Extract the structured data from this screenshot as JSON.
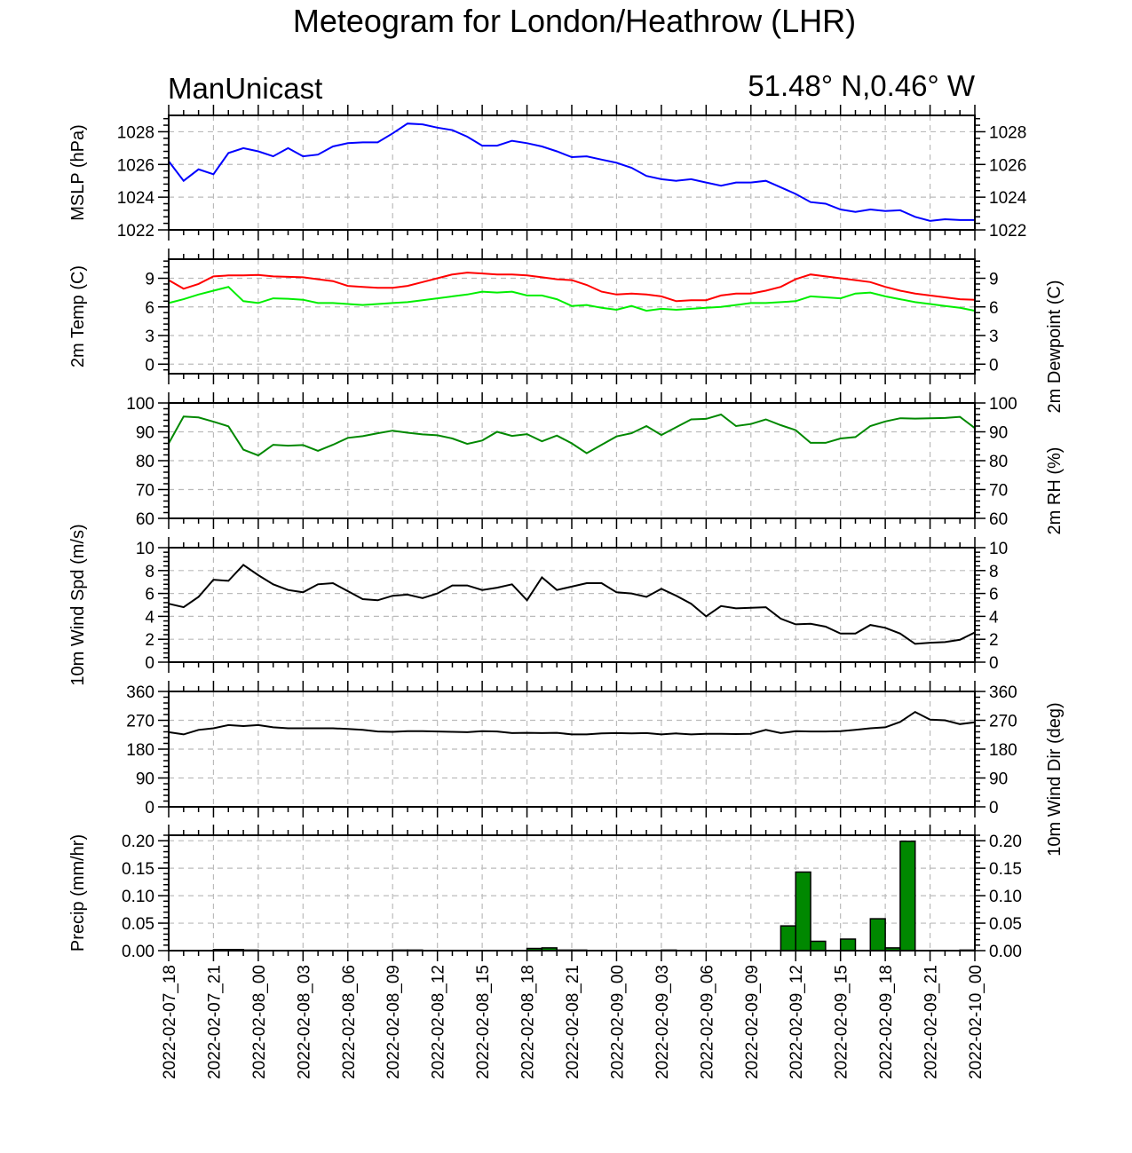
{
  "page": {
    "title": "Meteogram for London/Heathrow (LHR)",
    "model": "ManUnicast",
    "location": "51.48° N,0.46° W"
  },
  "chart_data": {
    "type": "line",
    "x_tick_labels": [
      "2022-02-07_18",
      "2022-02-07_21",
      "2022-02-08_00",
      "2022-02-08_03",
      "2022-02-08_06",
      "2022-02-08_09",
      "2022-02-08_12",
      "2022-02-08_15",
      "2022-02-08_18",
      "2022-02-08_21",
      "2022-02-09_00",
      "2022-02-09_03",
      "2022-02-09_06",
      "2022-02-09_09",
      "2022-02-09_12",
      "2022-02-09_15",
      "2022-02-09_18",
      "2022-02-09_21",
      "2022-02-10_00"
    ],
    "x_range_hours": [
      0,
      54
    ],
    "panels": [
      {
        "ylabel": "MSLP (hPa)",
        "ylabel_right": "",
        "ylim": [
          1022,
          1029
        ],
        "ticks": [
          1022,
          1024,
          1026,
          1028
        ],
        "tick_labels_right": true,
        "series": [
          {
            "color": "#0000ff",
            "x": [
              0,
              1,
              2,
              3,
              4,
              5,
              6,
              7,
              8,
              9,
              10,
              11,
              12,
              13,
              14,
              15,
              16,
              17,
              18,
              19,
              20,
              21,
              22,
              23,
              24,
              25,
              26,
              27,
              28,
              29,
              30,
              31,
              32,
              33,
              34,
              35,
              36,
              37,
              38,
              39,
              40,
              41,
              42,
              43,
              44,
              45,
              46,
              47,
              48,
              49,
              50,
              51,
              52,
              53,
              54
            ],
            "values": [
              1026.2,
              1025.0,
              1025.7,
              1025.4,
              1026.7,
              1027.0,
              1026.8,
              1026.5,
              1027.0,
              1026.5,
              1026.6,
              1027.1,
              1027.3,
              1027.35,
              1027.35,
              1027.9,
              1028.5,
              1028.45,
              1028.25,
              1028.1,
              1027.7,
              1027.15,
              1027.15,
              1027.45,
              1027.3,
              1027.1,
              1026.8,
              1026.45,
              1026.5,
              1026.3,
              1026.1,
              1025.8,
              1025.3,
              1025.1,
              1025.0,
              1025.1,
              1024.9,
              1024.7,
              1024.9,
              1024.9,
              1025.0,
              1024.6,
              1024.2,
              1023.7,
              1023.6,
              1023.25,
              1023.1,
              1023.25,
              1023.15,
              1023.2,
              1022.8,
              1022.55,
              1022.65,
              1022.6,
              1022.6
            ]
          }
        ]
      },
      {
        "ylabel": "2m Temp (C)",
        "ylabel_right": "2m Dewpoint (C)",
        "ylim": [
          -1,
          11
        ],
        "ticks": [
          0,
          3,
          6,
          9
        ],
        "tick_labels_right": true,
        "series": [
          {
            "color": "#ff0000",
            "x": [
              0,
              1,
              2,
              3,
              4,
              5,
              6,
              7,
              8,
              9,
              10,
              11,
              12,
              13,
              14,
              15,
              16,
              17,
              18,
              19,
              20,
              21,
              22,
              23,
              24,
              25,
              26,
              27,
              28,
              29,
              30,
              31,
              32,
              33,
              34,
              35,
              36,
              37,
              38,
              39,
              40,
              41,
              42,
              43,
              44,
              45,
              46,
              47,
              48,
              49,
              50,
              51,
              52,
              53,
              54
            ],
            "values": [
              8.8,
              7.9,
              8.4,
              9.2,
              9.3,
              9.3,
              9.35,
              9.2,
              9.15,
              9.1,
              8.9,
              8.7,
              8.2,
              8.1,
              8.0,
              8.0,
              8.2,
              8.6,
              9.0,
              9.4,
              9.6,
              9.5,
              9.4,
              9.4,
              9.3,
              9.1,
              8.9,
              8.8,
              8.3,
              7.6,
              7.3,
              7.4,
              7.3,
              7.1,
              6.6,
              6.7,
              6.7,
              7.2,
              7.4,
              7.4,
              7.7,
              8.1,
              8.9,
              9.4,
              9.2,
              9.0,
              8.8,
              8.6,
              8.1,
              7.7,
              7.4,
              7.2,
              7.0,
              6.8,
              6.75
            ]
          },
          {
            "color": "#00ee00",
            "x": [
              0,
              1,
              2,
              3,
              4,
              5,
              6,
              7,
              8,
              9,
              10,
              11,
              12,
              13,
              14,
              15,
              16,
              17,
              18,
              19,
              20,
              21,
              22,
              23,
              24,
              25,
              26,
              27,
              28,
              29,
              30,
              31,
              32,
              33,
              34,
              35,
              36,
              37,
              38,
              39,
              40,
              41,
              42,
              43,
              44,
              45,
              46,
              47,
              48,
              49,
              50,
              51,
              52,
              53,
              54
            ],
            "values": [
              6.4,
              6.8,
              7.3,
              7.7,
              8.1,
              6.6,
              6.4,
              6.9,
              6.85,
              6.75,
              6.4,
              6.4,
              6.3,
              6.2,
              6.3,
              6.4,
              6.5,
              6.7,
              6.9,
              7.1,
              7.3,
              7.6,
              7.5,
              7.6,
              7.2,
              7.2,
              6.8,
              6.1,
              6.2,
              5.9,
              5.7,
              6.1,
              5.6,
              5.8,
              5.7,
              5.8,
              5.9,
              6.0,
              6.2,
              6.4,
              6.4,
              6.5,
              6.6,
              7.1,
              7.0,
              6.9,
              7.4,
              7.5,
              7.1,
              6.8,
              6.5,
              6.3,
              6.1,
              5.9,
              5.6
            ]
          }
        ]
      },
      {
        "ylabel": "",
        "ylabel_right": "2m RH (%)",
        "ylim": [
          60,
          100
        ],
        "ticks": [
          60,
          70,
          80,
          90,
          100
        ],
        "tick_labels_right": true,
        "series": [
          {
            "color": "#008800",
            "x": [
              0,
              1,
              2,
              3,
              4,
              5,
              6,
              7,
              8,
              9,
              10,
              11,
              12,
              13,
              14,
              15,
              16,
              17,
              18,
              19,
              20,
              21,
              22,
              23,
              24,
              25,
              26,
              27,
              28,
              29,
              30,
              31,
              32,
              33,
              34,
              35,
              36,
              37,
              38,
              39,
              40,
              41,
              42,
              43,
              44,
              45,
              46,
              47,
              48,
              49,
              50,
              51,
              52,
              53,
              54
            ],
            "values": [
              86,
              95.3,
              95,
              93.5,
              91.9,
              83.8,
              81.8,
              85.5,
              85.2,
              85.4,
              83.4,
              85.5,
              87.9,
              88.5,
              89.5,
              90.4,
              89.7,
              89.1,
              88.8,
              87.7,
              85.8,
              87.0,
              90.0,
              88.6,
              89.2,
              86.7,
              88.7,
              86.0,
              82.6,
              85.5,
              88.4,
              89.5,
              92.0,
              88.9,
              91.6,
              94.3,
              94.5,
              96.0,
              92.0,
              92.7,
              94.3,
              92.3,
              90.6,
              86.2,
              86.2,
              87.7,
              88.2,
              92.0,
              93.6,
              94.7,
              94.6,
              94.7,
              94.8,
              95.2,
              91.3
            ]
          }
        ]
      },
      {
        "ylabel": "10m Wind Spd (m/s)",
        "ylabel_right": "",
        "ylim": [
          0,
          10
        ],
        "ticks": [
          0,
          2,
          4,
          6,
          8,
          10
        ],
        "tick_labels_right": true,
        "series": [
          {
            "color": "#000000",
            "x": [
              0,
              1,
              2,
              3,
              4,
              5,
              6,
              7,
              8,
              9,
              10,
              11,
              12,
              13,
              14,
              15,
              16,
              17,
              18,
              19,
              20,
              21,
              22,
              23,
              24,
              25,
              26,
              27,
              28,
              29,
              30,
              31,
              32,
              33,
              34,
              35,
              36,
              37,
              38,
              39,
              40,
              41,
              42,
              43,
              44,
              45,
              46,
              47,
              48,
              49,
              50,
              51,
              52,
              53,
              54
            ],
            "values": [
              5.1,
              4.8,
              5.7,
              7.2,
              7.1,
              8.5,
              7.6,
              6.8,
              6.3,
              6.1,
              6.8,
              6.9,
              6.2,
              5.5,
              5.4,
              5.8,
              5.9,
              5.6,
              6.0,
              6.7,
              6.7,
              6.3,
              6.5,
              6.8,
              5.4,
              7.4,
              6.3,
              6.6,
              6.9,
              6.9,
              6.1,
              6.0,
              5.7,
              6.4,
              5.8,
              5.1,
              4.0,
              4.9,
              4.7,
              4.75,
              4.8,
              3.8,
              3.3,
              3.35,
              3.1,
              2.5,
              2.5,
              3.25,
              3.0,
              2.5,
              1.6,
              1.7,
              1.75,
              1.95,
              2.6
            ]
          }
        ]
      },
      {
        "ylabel": "",
        "ylabel_right": "10m Wind Dir (deg)",
        "ylim": [
          0,
          360
        ],
        "ticks": [
          0,
          90,
          180,
          270,
          360
        ],
        "tick_labels_right": true,
        "series": [
          {
            "color": "#000000",
            "x": [
              0,
              1,
              2,
              3,
              4,
              5,
              6,
              7,
              8,
              9,
              10,
              11,
              12,
              13,
              14,
              15,
              16,
              17,
              18,
              19,
              20,
              21,
              22,
              23,
              24,
              25,
              26,
              27,
              28,
              29,
              30,
              31,
              32,
              33,
              34,
              35,
              36,
              37,
              38,
              39,
              40,
              41,
              42,
              43,
              44,
              45,
              46,
              47,
              48,
              49,
              50,
              51,
              52,
              53,
              54
            ],
            "values": [
              233,
              226,
              240,
              245,
              255,
              252,
              255,
              248,
              245,
              245,
              245,
              245,
              243,
              240,
              235,
              234,
              236,
              236,
              235,
              234,
              233,
              236,
              235,
              230,
              231,
              230,
              231,
              226,
              226,
              229,
              230,
              229,
              230,
              226,
              229,
              226,
              228,
              228,
              227,
              228,
              240,
              230,
              236,
              235,
              235,
              236,
              240,
              245,
              248,
              265,
              296,
              272,
              270,
              258,
              264
            ]
          }
        ]
      },
      {
        "ylabel": "Precip (mm/hr)",
        "ylabel_right": "",
        "ylim": [
          0,
          0.21
        ],
        "ticks": [
          0,
          0.05,
          0.1,
          0.15,
          0.2
        ],
        "tick_labels": [
          "0.00",
          "0.05",
          "0.10",
          "0.15",
          "0.20"
        ],
        "tick_labels_right": true,
        "bars": {
          "color": "#008800",
          "x": [
            0,
            1,
            2,
            3,
            4,
            5,
            6,
            7,
            8,
            9,
            10,
            11,
            12,
            13,
            14,
            15,
            16,
            17,
            18,
            19,
            20,
            21,
            22,
            23,
            24,
            25,
            26,
            27,
            28,
            29,
            30,
            31,
            32,
            33,
            34,
            35,
            36,
            37,
            38,
            39,
            40,
            41,
            42,
            43,
            44,
            45,
            46,
            47,
            48,
            49,
            50,
            51,
            52,
            53
          ],
          "values": [
            0,
            0,
            0,
            0.002,
            0.002,
            0.001,
            0,
            0,
            0,
            0,
            0,
            0,
            0,
            0,
            0,
            0.001,
            0.001,
            0,
            0,
            0,
            0,
            0,
            0,
            0,
            0.004,
            0.005,
            0.001,
            0.001,
            0,
            0,
            0,
            0,
            0,
            0.001,
            0,
            0,
            0,
            0,
            0,
            0,
            0,
            0.045,
            0.143,
            0.017,
            0,
            0.021,
            0,
            0.058,
            0.005,
            0.199,
            0,
            0,
            0,
            0.001
          ]
        }
      }
    ]
  }
}
